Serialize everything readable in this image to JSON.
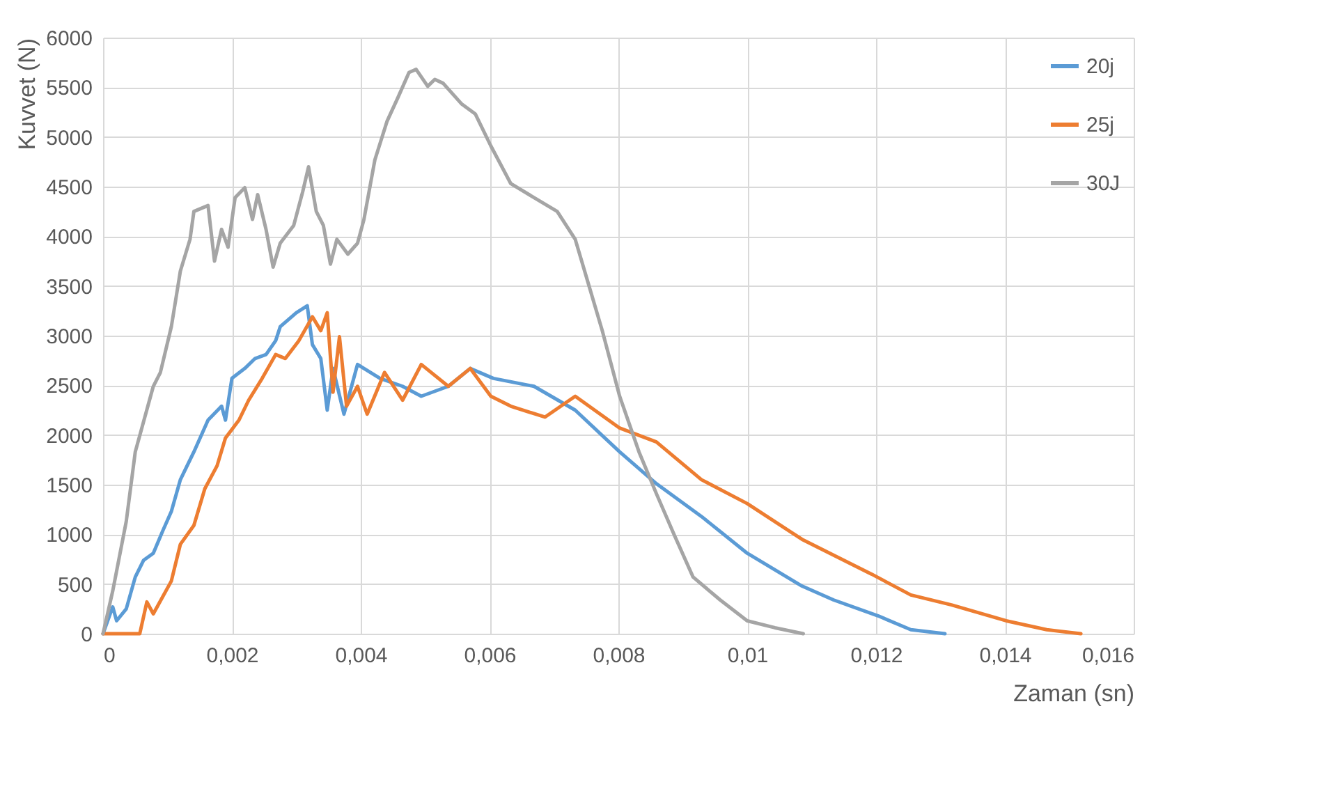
{
  "chart_data": {
    "type": "line",
    "xlabel": "Zaman (sn)",
    "ylabel": "Kuvvet (N)",
    "xlim": [
      0,
      0.016
    ],
    "xticks": [
      0,
      {
        "value": 0.002,
        "label": "0,002"
      },
      {
        "value": 0.004,
        "label": "0,004"
      },
      {
        "value": 0.006,
        "label": "0,006"
      },
      {
        "value": 0.008,
        "label": "0,008"
      },
      {
        "value": 0.01,
        "label": "0,01"
      },
      {
        "value": 0.012,
        "label": "0,012"
      },
      {
        "value": 0.014,
        "label": "0,014"
      },
      {
        "value": 0.016,
        "label": "0,016"
      }
    ],
    "ylim": [
      0,
      6000
    ],
    "yticks": [
      0,
      500,
      1000,
      1500,
      2000,
      2500,
      3000,
      3500,
      4000,
      4500,
      5000,
      5500,
      6000
    ],
    "grid": true,
    "legend": "top right",
    "line_style": "solid",
    "marker": "none",
    "series": [
      {
        "name": "20j",
        "color": "#5b9bd5",
        "x": [
          0,
          0.00015,
          0.00021,
          0.00036,
          0.0005,
          0.00063,
          0.00078,
          0.00093,
          0.00106,
          0.0012,
          0.00141,
          0.00163,
          0.00184,
          0.0019,
          0.002,
          0.0022,
          0.00236,
          0.00253,
          0.00268,
          0.00275,
          0.003,
          0.00317,
          0.00325,
          0.00338,
          0.00348,
          0.00357,
          0.00374,
          0.00395,
          0.0043,
          0.00465,
          0.00494,
          0.00536,
          0.0057,
          0.00606,
          0.00669,
          0.00733,
          0.00802,
          0.00859,
          0.00929,
          0.01,
          0.01085,
          0.01134,
          0.01203,
          0.01254,
          0.01307
        ],
        "values": [
          0,
          270,
          130,
          250,
          570,
          740,
          810,
          1040,
          1230,
          1550,
          1830,
          2150,
          2290,
          2150,
          2570,
          2670,
          2770,
          2810,
          2950,
          3090,
          3230,
          3300,
          2910,
          2770,
          2250,
          2670,
          2210,
          2710,
          2570,
          2490,
          2390,
          2490,
          2670,
          2570,
          2490,
          2250,
          1830,
          1510,
          1180,
          810,
          480,
          340,
          180,
          40,
          0
        ]
      },
      {
        "name": "25j",
        "color": "#ed7d31",
        "x": [
          0,
          0.00057,
          0.00068,
          0.00078,
          0.00106,
          0.0012,
          0.00141,
          0.00158,
          0.00177,
          0.0019,
          0.00211,
          0.00226,
          0.00247,
          0.00268,
          0.00283,
          0.00304,
          0.00325,
          0.00338,
          0.00348,
          0.00357,
          0.00367,
          0.00378,
          0.00395,
          0.0041,
          0.00437,
          0.00465,
          0.00494,
          0.00536,
          0.0057,
          0.00602,
          0.00633,
          0.00686,
          0.00733,
          0.00802,
          0.00859,
          0.00929,
          0.01,
          0.01085,
          0.01193,
          0.01254,
          0.01317,
          0.01402,
          0.01465,
          0.01518
        ],
        "values": [
          0,
          0,
          320,
          200,
          530,
          900,
          1090,
          1460,
          1690,
          1970,
          2150,
          2350,
          2570,
          2810,
          2770,
          2950,
          3190,
          3050,
          3230,
          2430,
          2990,
          2290,
          2490,
          2210,
          2630,
          2350,
          2710,
          2490,
          2670,
          2390,
          2290,
          2180,
          2390,
          2070,
          1930,
          1550,
          1310,
          950,
          600,
          390,
          290,
          130,
          40,
          0
        ]
      },
      {
        "name": "30J",
        "color": "#a5a5a5",
        "x": [
          0,
          0.00015,
          0.00036,
          0.0005,
          0.00078,
          0.00089,
          0.00106,
          0.0012,
          0.00135,
          0.00141,
          0.00163,
          0.00173,
          0.00184,
          0.00194,
          0.00205,
          0.0022,
          0.00232,
          0.0024,
          0.00253,
          0.00264,
          0.00275,
          0.00296,
          0.0031,
          0.00319,
          0.00331,
          0.00342,
          0.00353,
          0.00363,
          0.0038,
          0.00395,
          0.00405,
          0.00422,
          0.00441,
          0.00458,
          0.00475,
          0.00486,
          0.00504,
          0.00515,
          0.00528,
          0.00557,
          0.00578,
          0.00602,
          0.00633,
          0.00705,
          0.00733,
          0.00754,
          0.00775,
          0.00802,
          0.00832,
          0.00859,
          0.00887,
          0.00916,
          0.00958,
          0.01,
          0.01043,
          0.01087
        ],
        "values": [
          0,
          430,
          1130,
          1830,
          2490,
          2630,
          3090,
          3650,
          3970,
          4250,
          4310,
          3750,
          4070,
          3890,
          4390,
          4490,
          4170,
          4420,
          4070,
          3690,
          3930,
          4110,
          4450,
          4700,
          4250,
          4110,
          3720,
          3970,
          3820,
          3930,
          4170,
          4770,
          5160,
          5400,
          5650,
          5680,
          5510,
          5580,
          5540,
          5330,
          5230,
          4910,
          4530,
          4250,
          3970,
          3510,
          3050,
          2390,
          1830,
          1410,
          990,
          570,
          340,
          130,
          60,
          0
        ]
      }
    ]
  }
}
